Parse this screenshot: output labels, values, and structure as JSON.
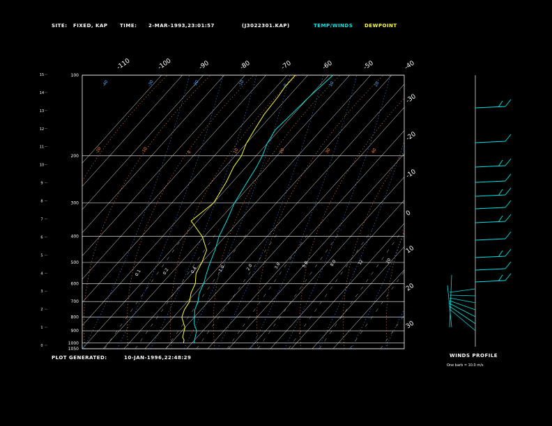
{
  "header": {
    "site_label": "SITE:",
    "site_value": "FIXED, KAP",
    "time_label": "TIME:",
    "time_value": "2-MAR-1993,23:01:57",
    "file_id": "(J3022301.KAP)",
    "legend_temp": "TEMP/WINDS",
    "legend_dew": "DEWPOINT"
  },
  "footer": {
    "generated_label": "PLOT GENERATED:",
    "generated_value": "10-JAN-1996,22:48:29",
    "winds_title": "WINDS PROFILE",
    "winds_note": "One barb = 10.0 m/s"
  },
  "colors": {
    "background": "#000000",
    "temperature": "#00e5e5",
    "dewpoint": "#ffff33",
    "grid": "#ffffff",
    "mixing_ratio": "#ff7f3f",
    "dry_adiabat": "#ff9a60",
    "moist_adiabat": "#4ea7ff"
  },
  "chart_data": {
    "type": "line",
    "skew_t_log_p": true,
    "pressure_labels": [
      "100",
      "200",
      "300",
      "400",
      "500",
      "600",
      "700",
      "800",
      "900",
      "1000",
      "1050"
    ],
    "height_labels": [
      "0",
      "1",
      "2",
      "3",
      "4",
      "5",
      "6",
      "7",
      "8",
      "9",
      "10",
      "11",
      "12",
      "13",
      "14",
      "15"
    ],
    "top_temp_labels": [
      "-110",
      "-100",
      "-90",
      "-80",
      "-70",
      "-60",
      "-50",
      "-40"
    ],
    "right_temp_labels": [
      "-30",
      "-20",
      "-10",
      "0",
      "10",
      "20",
      "30"
    ],
    "mixing_ratio_labels": [
      "0.1",
      "0.2",
      "0.4",
      "1.0",
      "2.0",
      "3.0",
      "5.0",
      "8.0",
      "12",
      "20"
    ],
    "dry_adiabat_labels": [
      "-20",
      "-10",
      "0",
      "10",
      "20",
      "30",
      "40"
    ],
    "moist_adiabat_labels": [
      "-40",
      "-30",
      "-20",
      "-10",
      "0",
      "10",
      "20"
    ],
    "series": [
      {
        "name": "TEMP/WINDS",
        "pressure": [
          1000,
          975,
          950,
          925,
          900,
          875,
          850,
          800,
          750,
          700,
          650,
          600,
          550,
          500,
          450,
          400,
          350,
          300,
          250,
          220,
          200,
          180,
          160,
          140,
          120,
          110,
          100
        ],
        "temperature": [
          -9,
          -10,
          -11,
          -12,
          -13,
          -15,
          -17,
          -20,
          -23,
          -25,
          -28,
          -30,
          -33,
          -36,
          -39,
          -43,
          -46,
          -50,
          -53,
          -55,
          -57,
          -60,
          -62,
          -61,
          -60,
          -59,
          -58
        ]
      },
      {
        "name": "DEWPOINT",
        "pressure": [
          1000,
          975,
          950,
          925,
          900,
          875,
          850,
          800,
          750,
          700,
          650,
          600,
          550,
          500,
          450,
          400,
          350,
          300,
          250,
          220,
          200,
          180,
          160,
          140,
          120,
          110,
          100
        ],
        "dewpoint": [
          -14,
          -15,
          -17,
          -18,
          -19,
          -20,
          -22,
          -26,
          -28,
          -29,
          -32,
          -34,
          -38,
          -40,
          -43,
          -51,
          -63,
          -60,
          -63,
          -66,
          -67,
          -70,
          -72,
          -74,
          -75,
          -76,
          -76
        ]
      }
    ]
  }
}
